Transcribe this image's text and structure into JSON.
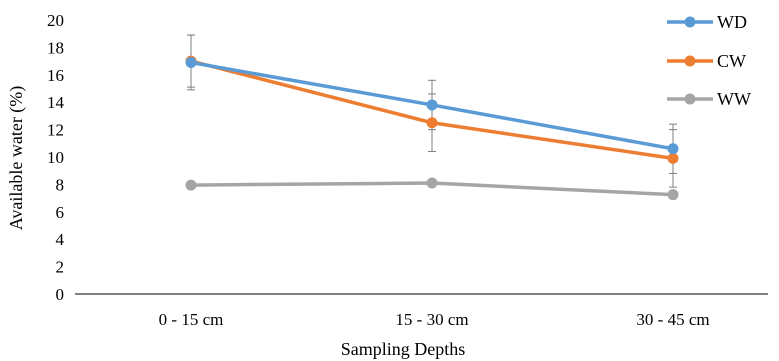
{
  "chart_data": {
    "type": "line",
    "title": "",
    "xlabel": "Sampling Depths",
    "ylabel": "Available water (%)",
    "categories": [
      "0 - 15 cm",
      "15 - 30 cm",
      "30 - 45 cm"
    ],
    "ylim": [
      0,
      20
    ],
    "yticks": [
      0,
      2,
      4,
      6,
      8,
      10,
      12,
      14,
      16,
      18,
      20
    ],
    "grid": false,
    "legend_position": "top-right",
    "series": [
      {
        "name": "WD",
        "color": "#5B9BD5",
        "values": [
          16.9,
          13.8,
          10.6
        ],
        "error": [
          2.0,
          1.8,
          1.8
        ]
      },
      {
        "name": "CW",
        "color": "#ED7D31",
        "values": [
          17.0,
          12.5,
          9.9
        ],
        "error": [
          1.9,
          2.1,
          2.1
        ]
      },
      {
        "name": "WW",
        "color": "#A5A5A5",
        "values": [
          7.95,
          8.1,
          7.25
        ],
        "error": [
          0,
          0,
          0
        ]
      }
    ]
  }
}
